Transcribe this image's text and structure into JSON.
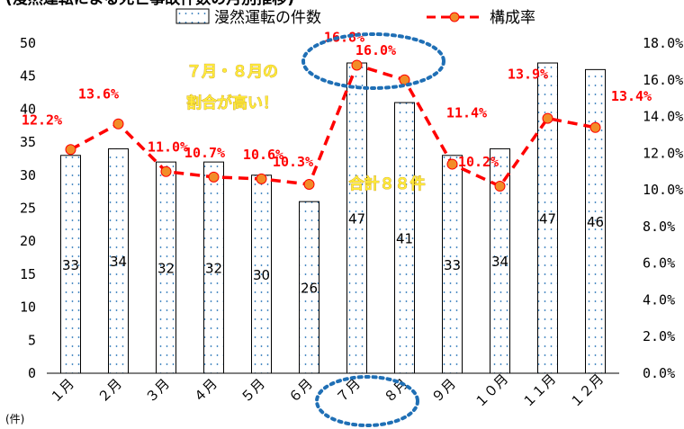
{
  "chart_data": {
    "type": "bar",
    "title_fragment": "(漫然運転による死亡事故件数の月別推移)",
    "categories": [
      "１月",
      "２月",
      "３月",
      "４月",
      "５月",
      "６月",
      "７月",
      "８月",
      "９月",
      "１０月",
      "１１月",
      "１２月"
    ],
    "series": [
      {
        "name": "漫然運転の件数",
        "type": "bar",
        "axis": "left",
        "values": [
          33,
          34,
          32,
          32,
          30,
          26,
          47,
          41,
          33,
          34,
          47,
          46
        ]
      },
      {
        "name": "構成率",
        "type": "line",
        "axis": "right",
        "values": [
          12.2,
          13.6,
          11.0,
          10.7,
          10.6,
          10.3,
          16.8,
          16.0,
          11.4,
          10.2,
          13.9,
          13.4
        ],
        "labels": [
          "12.2%",
          "13.6%",
          "11.0%",
          "10.7%",
          "10.6%",
          "10.3%",
          "16.8%",
          "16.0%",
          "11.4%",
          "10.2%",
          "13.9%",
          "13.4%"
        ]
      }
    ],
    "y_left": {
      "lim": [
        0,
        50
      ],
      "ticks": [
        "0",
        "5",
        "10",
        "15",
        "20",
        "25",
        "30",
        "35",
        "40",
        "45",
        "50"
      ]
    },
    "y_right": {
      "lim": [
        0,
        18
      ],
      "ticks": [
        "0.0%",
        "2.0%",
        "4.0%",
        "6.0%",
        "8.0%",
        "10.0%",
        "12.0%",
        "14.0%",
        "16.0%",
        "18.0%"
      ]
    },
    "unit_label": "(件)",
    "legend_position": "top",
    "grid": false,
    "annotations": [
      {
        "text": "７月・８月の",
        "role": "callout-line1"
      },
      {
        "text": "割合が高い！",
        "role": "callout-line2"
      },
      {
        "text": "合計８８件",
        "role": "sum-label"
      }
    ],
    "highlight_months": [
      "７月",
      "８月"
    ]
  },
  "colors": {
    "bar_fill": "#ffffff",
    "bar_dot": "#1f6fb5",
    "line": "#ff0000",
    "marker_fill": "#f28c28",
    "marker_stroke": "#ff0000",
    "highlight_ellipse": "#1f6fb5",
    "note_fill": "#ffeb3b"
  }
}
